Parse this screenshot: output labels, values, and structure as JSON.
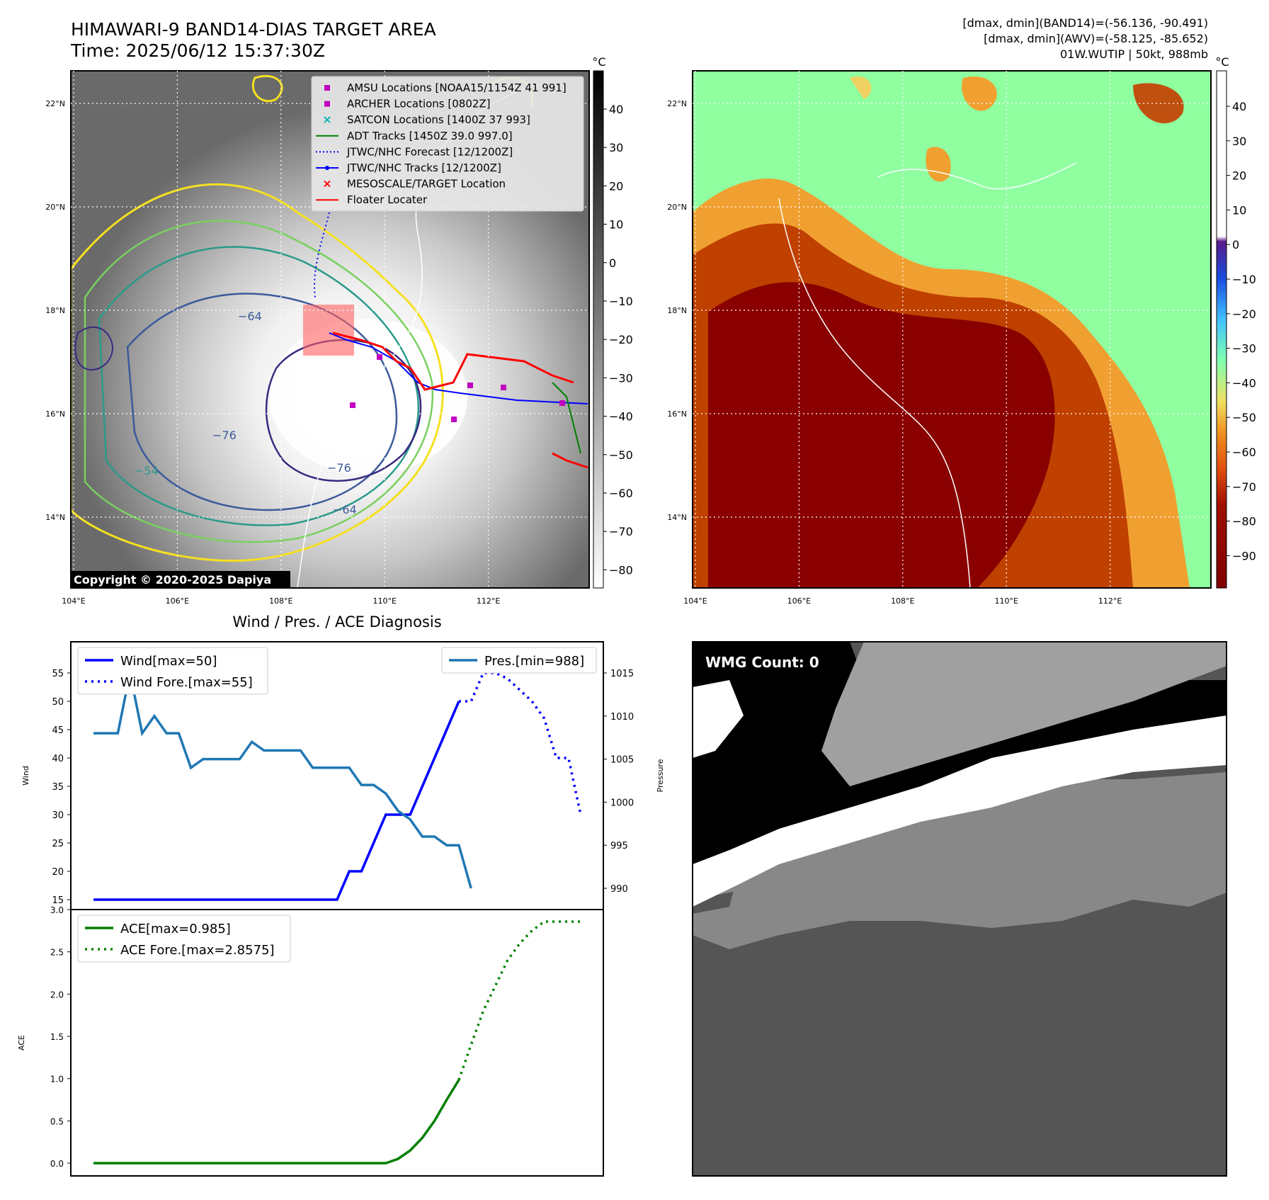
{
  "header": {
    "title_line1": "HIMAWARI-9 BAND14-DIAS TARGET AREA",
    "title_line2": "Time: 2025/06/12 15:37:30Z",
    "right_line1": "[dmax, dmin](BAND14)=(-56.136, -90.491)",
    "right_line2": "[dmax, dmin](AWV)=(-58.125, -85.652)",
    "right_line3": "01W.WUTIP | 50kt, 988mb"
  },
  "map_left": {
    "unit": "°C",
    "lat_labels": [
      "22°N",
      "20°N",
      "18°N",
      "16°N",
      "14°N"
    ],
    "lon_labels": [
      "104°E",
      "106°E",
      "108°E",
      "110°E",
      "112°E"
    ],
    "colorbar_ticks": [
      "40",
      "30",
      "20",
      "10",
      "0",
      "−10",
      "−20",
      "−30",
      "−40",
      "−50",
      "−60",
      "−70",
      "−80"
    ],
    "contour_labels": [
      "−64",
      "−76",
      "−54",
      "−76",
      "−64",
      "−54",
      "−64"
    ],
    "copyright": "Copyright © 2020-2025 Dapiya",
    "legend": [
      {
        "label": "AMSU Locations [NOAA15/1154Z 41 991]",
        "color": "#c000c0",
        "marker": "square"
      },
      {
        "label": "ARCHER Locations [0802Z]",
        "color": "#c000c0",
        "marker": "square"
      },
      {
        "label": "SATCON Locations [1400Z 37 993]",
        "color": "#00b4b4",
        "marker": "x"
      },
      {
        "label": "ADT Tracks [1450Z 39.0 997.0]",
        "color": "#008000",
        "marker": "line"
      },
      {
        "label": "JTWC/NHC Forecast [12/1200Z]",
        "color": "#0000ff",
        "marker": "dotted"
      },
      {
        "label": "JTWC/NHC Tracks [12/1200Z]",
        "color": "#0000ff",
        "marker": "line-dot"
      },
      {
        "label": "MESOSCALE/TARGET Location",
        "color": "#ff0000",
        "marker": "x"
      },
      {
        "label": "Floater Locater",
        "color": "#ff0000",
        "marker": "line"
      }
    ]
  },
  "map_right": {
    "unit": "°C",
    "lat_labels": [
      "22°N",
      "20°N",
      "18°N",
      "16°N",
      "14°N"
    ],
    "lon_labels": [
      "104°E",
      "106°E",
      "108°E",
      "110°E",
      "112°E"
    ],
    "colorbar_ticks": [
      "40",
      "30",
      "20",
      "10",
      "0",
      "−10",
      "−20",
      "−30",
      "−40",
      "−50",
      "−60",
      "−70",
      "−80",
      "−90"
    ]
  },
  "wmg": {
    "label": "WMG Count: 0"
  },
  "chart_data": [
    {
      "type": "line",
      "title": "Wind / Pres. / ACE Diagnosis",
      "ylabel": "Wind",
      "ylabel_right": "Pressure",
      "ylim": [
        14,
        56.5
      ],
      "ylim_right": [
        987,
        1016
      ],
      "yticks": [
        15,
        20,
        25,
        30,
        35,
        40,
        45,
        50,
        55
      ],
      "yticks_right": [
        990,
        995,
        1000,
        1005,
        1010,
        1015
      ],
      "series": [
        {
          "name": "Wind[max=50]",
          "color": "#0000ff",
          "style": "solid",
          "axis": "left",
          "x": [
            0,
            1,
            2,
            3,
            4,
            5,
            6,
            7,
            8,
            9,
            10,
            11,
            12,
            13,
            14,
            15,
            16,
            17,
            18,
            19,
            20,
            21,
            22,
            23,
            24,
            25,
            26,
            27,
            28,
            29,
            30
          ],
          "y": [
            15,
            15,
            15,
            15,
            15,
            15,
            15,
            15,
            15,
            15,
            15,
            15,
            15,
            15,
            15,
            15,
            15,
            15,
            15,
            15,
            15,
            20,
            20,
            25,
            30,
            30,
            30,
            35,
            40,
            45,
            50
          ]
        },
        {
          "name": "Wind Fore.[max=55]",
          "color": "#0000ff",
          "style": "dotted",
          "axis": "left",
          "x": [
            30,
            31,
            32,
            33,
            34,
            35,
            36,
            37,
            38,
            39,
            40
          ],
          "y": [
            50,
            50,
            55,
            55,
            54,
            52,
            50,
            47,
            40,
            40,
            30
          ]
        },
        {
          "name": "Pres.[min=988]",
          "color": "#1f77b4",
          "style": "solid",
          "axis": "right",
          "x": [
            0,
            1,
            2,
            3,
            4,
            5,
            6,
            7,
            8,
            9,
            10,
            11,
            12,
            13,
            14,
            15,
            16,
            17,
            18,
            19,
            20,
            21,
            22,
            23,
            24,
            25,
            26,
            27,
            28,
            29,
            30,
            31
          ],
          "y": [
            1008,
            1008,
            1008,
            1015,
            1008,
            1010,
            1008,
            1008,
            1004,
            1005,
            1005,
            1005,
            1005,
            1007,
            1006,
            1006,
            1006,
            1006,
            1004,
            1004,
            1004,
            1004,
            1002,
            1002,
            1001,
            999,
            998,
            996,
            996,
            995,
            995,
            990
          ]
        }
      ]
    },
    {
      "type": "line",
      "ylabel": "ACE",
      "ylim": [
        -0.1,
        3.0
      ],
      "yticks": [
        0.0,
        0.5,
        1.0,
        1.5,
        2.0,
        2.5,
        3.0
      ],
      "series": [
        {
          "name": "ACE[max=0.985]",
          "color": "#008000",
          "style": "solid",
          "x": [
            0,
            5,
            10,
            15,
            20,
            23,
            24,
            25,
            26,
            27,
            28,
            29,
            30
          ],
          "y": [
            0,
            0,
            0,
            0,
            0,
            0,
            0,
            0.05,
            0.15,
            0.3,
            0.5,
            0.75,
            0.985
          ]
        },
        {
          "name": "ACE Fore.[max=2.8575]",
          "color": "#008000",
          "style": "dotted",
          "x": [
            30,
            31,
            32,
            33,
            34,
            35,
            36,
            37,
            38,
            39,
            40
          ],
          "y": [
            0.985,
            1.4,
            1.8,
            2.1,
            2.4,
            2.6,
            2.75,
            2.8575,
            2.8575,
            2.8575,
            2.8575
          ]
        }
      ]
    }
  ]
}
